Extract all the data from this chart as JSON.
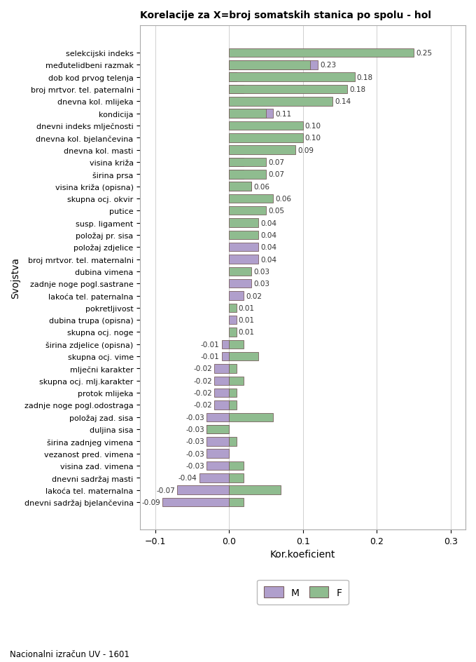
{
  "title": "Korelacije za X=broj somatskih stanica po spolu - hol",
  "xlabel": "Kor.koeficient",
  "ylabel": "Svojstva",
  "footer": "Nacionalni izračun UV - 1601",
  "xlim": [
    -0.12,
    0.32
  ],
  "xticks": [
    -0.1,
    0.0,
    0.1,
    0.2,
    0.3
  ],
  "color_M": "#b09fcc",
  "color_F": "#8fbc8f",
  "bar_height": 0.72,
  "categories": [
    "selekcijski indeks",
    "međutelidbeni razmak",
    "dob kod prvog telenja",
    "broj mrtvor. tel. paternalni",
    "dnevna kol. mlijeka",
    "kondicija",
    "dnevni indeks mlječnosti",
    "dnevna kol. bjelančevina",
    "dnevna kol. masti",
    "visina križa",
    "širina prsa",
    "visina križa (opisna)",
    "skupna ocj. okvir",
    "putice",
    "susp. ligament",
    "položaj pr. sisa",
    "položaj zdjelice",
    "broj mrtvor. tel. maternalni",
    "dubina vimena",
    "zadnje noge pogl.sastrane",
    "lakoća tel. paternalna",
    "pokretljivost",
    "dubina trupa (opisna)",
    "skupna ocj. noge",
    "širina zdjelice (opisna)",
    "skupna ocj. vime",
    "mlječni karakter",
    "skupna ocj. mlj.karakter",
    "protok mlijeka",
    "zadnje noge pogl.odostraga",
    "položaj zad. sisa",
    "duljina sisa",
    "širina zadnjeg vimena",
    "vezanost pred. vimena",
    "visina zad. vimena",
    "dnevni sadržaj masti",
    "lakoća tel. maternalna",
    "dnevni sadržaj bjelančevina"
  ],
  "values_M": [
    0.0,
    0.12,
    0.01,
    0.02,
    0.0,
    0.06,
    0.0,
    0.0,
    0.0,
    0.02,
    0.02,
    0.03,
    0.0,
    0.0,
    0.0,
    0.0,
    0.04,
    0.04,
    0.0,
    0.03,
    0.02,
    0.0,
    0.01,
    0.0,
    -0.01,
    -0.01,
    -0.02,
    -0.02,
    -0.02,
    -0.02,
    -0.03,
    -0.03,
    -0.03,
    -0.03,
    -0.03,
    -0.04,
    -0.07,
    -0.09
  ],
  "values_F": [
    0.25,
    0.11,
    0.17,
    0.16,
    0.14,
    0.05,
    0.1,
    0.1,
    0.09,
    0.05,
    0.05,
    0.03,
    0.06,
    0.05,
    0.04,
    0.04,
    0.0,
    0.0,
    0.03,
    0.0,
    0.0,
    0.01,
    0.0,
    0.01,
    0.02,
    0.04,
    0.01,
    0.02,
    0.01,
    0.01,
    0.06,
    -0.03,
    0.01,
    0.0,
    0.02,
    0.02,
    0.07,
    0.02
  ],
  "labels": [
    "0.25",
    "0.23",
    "0.18",
    "0.18",
    "0.14",
    "0.11",
    "0.10",
    "0.10",
    "0.09",
    "0.07",
    "0.07",
    "0.06",
    "0.06",
    "0.05",
    "0.04",
    "0.04",
    "0.04",
    "0.04",
    "0.03",
    "0.03",
    "0.02",
    "0.01",
    "0.01",
    "0.01",
    "-0.01",
    "-0.01",
    "-0.02",
    "-0.02",
    "-0.02",
    "-0.02",
    "-0.03",
    "-0.03",
    "-0.03",
    "-0.03",
    "-0.03",
    "-0.04",
    "-0.07",
    "-0.09"
  ]
}
